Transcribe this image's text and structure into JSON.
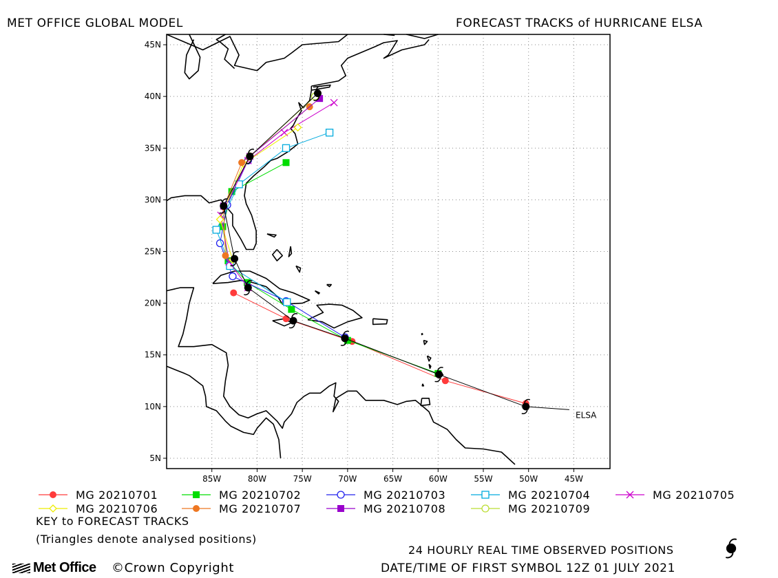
{
  "header": {
    "left_title": "MET OFFICE GLOBAL MODEL",
    "right_title": "FORECAST TRACKS of HURRICANE ELSA"
  },
  "storm_label": "ELSA",
  "chart_data": {
    "type": "map-tracks",
    "lat_range": [
      4,
      46
    ],
    "lon_range": [
      -90,
      -41
    ],
    "lat_ticks": [
      "5N",
      "10N",
      "15N",
      "20N",
      "25N",
      "30N",
      "35N",
      "40N",
      "45N"
    ],
    "lon_ticks": [
      "85W",
      "80W",
      "75W",
      "70W",
      "65W",
      "60W",
      "55W",
      "50W",
      "45W"
    ],
    "observed_track": [
      [
        -45.5,
        9.7
      ],
      [
        -50.3,
        10.0
      ],
      [
        -59.9,
        13.1
      ],
      [
        -70.3,
        16.6
      ],
      [
        -76.0,
        18.3
      ],
      [
        -81.0,
        21.5
      ],
      [
        -82.5,
        24.3
      ],
      [
        -83.7,
        29.4
      ],
      [
        -80.8,
        34.2
      ],
      [
        -73.3,
        40.3
      ]
    ],
    "series": [
      {
        "name": "MG 20210701",
        "color": "#ff3b3b",
        "marker": "filled-circle",
        "track": [
          [
            -50.3,
            10.3
          ],
          [
            -59.2,
            12.5
          ],
          [
            -69.5,
            16.3
          ],
          [
            -76.8,
            18.5
          ],
          [
            -82.6,
            21.0
          ]
        ]
      },
      {
        "name": "MG 20210702",
        "color": "#00dd00",
        "marker": "filled-square",
        "track": [
          [
            -60.0,
            13.2
          ],
          [
            -70.0,
            16.4
          ],
          [
            -76.2,
            19.4
          ],
          [
            -81.1,
            22.0
          ],
          [
            -83.2,
            24.1
          ],
          [
            -83.8,
            27.4
          ],
          [
            -82.8,
            30.8
          ],
          [
            -76.8,
            33.6
          ]
        ]
      },
      {
        "name": "MG 20210703",
        "color": "#2020ee",
        "marker": "open-circle",
        "track": [
          [
            -70.3,
            16.7
          ],
          [
            -76.8,
            20.2
          ],
          [
            -82.7,
            22.6
          ],
          [
            -84.1,
            25.8
          ],
          [
            -83.3,
            29.5
          ],
          [
            -81.0,
            33.8
          ]
        ]
      },
      {
        "name": "MG 20210704",
        "color": "#00aadd",
        "marker": "open-square",
        "track": [
          [
            -76.7,
            20.1
          ],
          [
            -83.0,
            23.6
          ],
          [
            -84.5,
            27.1
          ],
          [
            -82.0,
            31.5
          ],
          [
            -76.8,
            35.0
          ],
          [
            -72.0,
            36.5
          ]
        ]
      },
      {
        "name": "MG 20210705",
        "color": "#cc00cc",
        "marker": "x",
        "track": [
          [
            -81.0,
            21.5
          ],
          [
            -83.1,
            24.0
          ],
          [
            -84.0,
            28.5
          ],
          [
            -81.0,
            33.8
          ],
          [
            -77.0,
            36.5
          ],
          [
            -71.5,
            39.4
          ]
        ]
      },
      {
        "name": "MG 20210706",
        "color": "#eeee00",
        "marker": "open-diamond",
        "track": [
          [
            -82.7,
            24.2
          ],
          [
            -84.1,
            28.1
          ],
          [
            -81.5,
            33.5
          ],
          [
            -75.5,
            37.0
          ]
        ]
      },
      {
        "name": "MG 20210707",
        "color": "#ee7722",
        "marker": "filled-circle",
        "track": [
          [
            -83.5,
            24.6
          ],
          [
            -83.7,
            29.3
          ],
          [
            -81.7,
            33.6
          ],
          [
            -74.2,
            39.0
          ]
        ]
      },
      {
        "name": "MG 20210708",
        "color": "#9900cc",
        "marker": "filled-square",
        "track": [
          [
            -83.7,
            29.4
          ],
          [
            -80.8,
            34.2
          ],
          [
            -73.1,
            39.8
          ]
        ]
      },
      {
        "name": "MG 20210709",
        "color": "#bbdd33",
        "marker": "open-circle",
        "track": [
          [
            -80.8,
            34.2
          ],
          [
            -73.6,
            40.0
          ]
        ]
      }
    ]
  },
  "legend": {
    "key_title": "KEY to FORECAST TRACKS",
    "triangles_note": "(Triangles denote analysed positions)"
  },
  "footer": {
    "logo_text": "Met Office",
    "copyright": "©Crown Copyright",
    "observed_note": "24 HOURLY REAL TIME OBSERVED POSITIONS",
    "first_symbol": "DATE/TIME OF FIRST SYMBOL 12Z 01 JULY 2021"
  }
}
